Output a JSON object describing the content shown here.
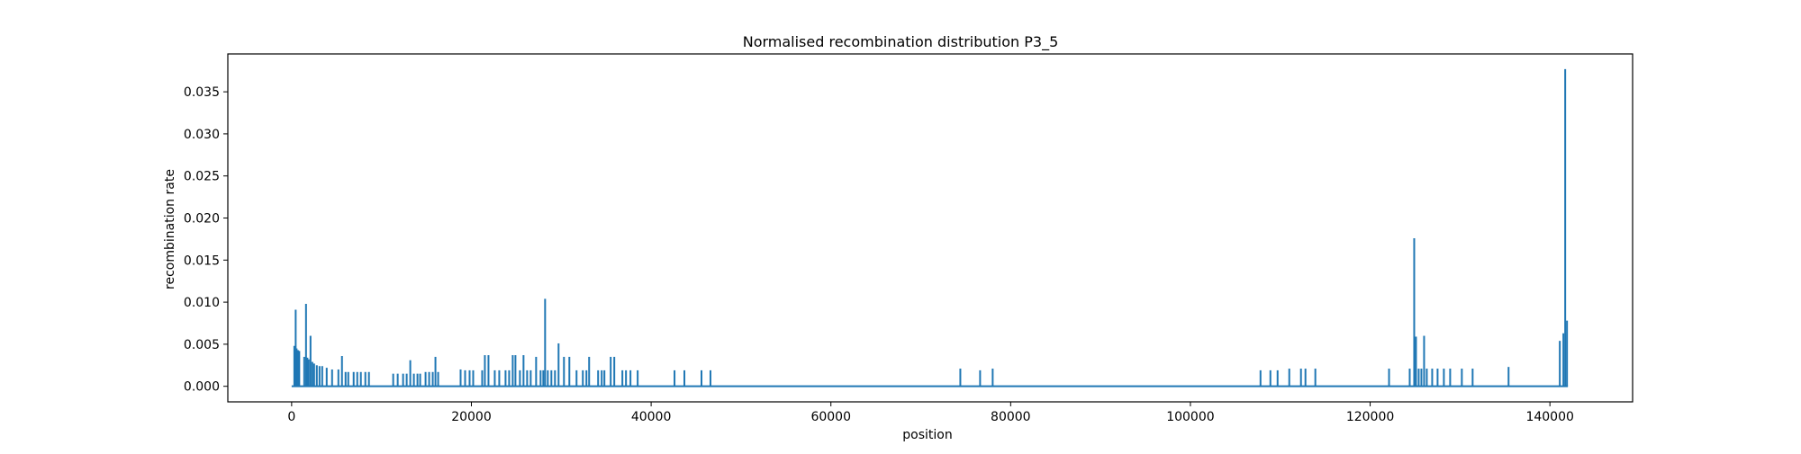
{
  "chart_data": {
    "type": "line",
    "title": "Normalised recombination distribution P3_5",
    "xlabel": "position",
    "ylabel": "recombination rate",
    "xlim": [
      -7100,
      149200
    ],
    "ylim": [
      -0.00185,
      0.0395
    ],
    "x_ticks": [
      0,
      20000,
      40000,
      60000,
      80000,
      100000,
      120000,
      140000
    ],
    "x_tick_labels": [
      "0",
      "20000",
      "40000",
      "60000",
      "80000",
      "100000",
      "120000",
      "140000"
    ],
    "y_ticks": [
      0.0,
      0.005,
      0.01,
      0.015,
      0.02,
      0.025,
      0.03,
      0.035
    ],
    "y_tick_labels": [
      "0.000",
      "0.005",
      "0.010",
      "0.015",
      "0.020",
      "0.025",
      "0.030",
      "0.035"
    ],
    "grid": false,
    "color": "#1f77b4",
    "x_range": [
      0,
      142000
    ],
    "baseline": 0,
    "spikes": [
      [
        300,
        0.0048
      ],
      [
        450,
        0.0091
      ],
      [
        550,
        0.0045
      ],
      [
        700,
        0.0043
      ],
      [
        850,
        0.0042
      ],
      [
        1400,
        0.0035
      ],
      [
        1600,
        0.0098
      ],
      [
        1750,
        0.0034
      ],
      [
        1900,
        0.0032
      ],
      [
        2100,
        0.006
      ],
      [
        2300,
        0.0029
      ],
      [
        2500,
        0.0027
      ],
      [
        2800,
        0.0025
      ],
      [
        3100,
        0.0024
      ],
      [
        3400,
        0.0024
      ],
      [
        3900,
        0.0022
      ],
      [
        4500,
        0.002
      ],
      [
        5200,
        0.002
      ],
      [
        5600,
        0.0036
      ],
      [
        6000,
        0.0017
      ],
      [
        6300,
        0.0017
      ],
      [
        6900,
        0.0017
      ],
      [
        7300,
        0.0017
      ],
      [
        7700,
        0.0017
      ],
      [
        8200,
        0.0017
      ],
      [
        8600,
        0.0017
      ],
      [
        11300,
        0.0015
      ],
      [
        11800,
        0.0015
      ],
      [
        12400,
        0.0015
      ],
      [
        12800,
        0.0015
      ],
      [
        13200,
        0.0031
      ],
      [
        13600,
        0.0015
      ],
      [
        14000,
        0.0015
      ],
      [
        14300,
        0.0015
      ],
      [
        14900,
        0.0017
      ],
      [
        15300,
        0.0017
      ],
      [
        15700,
        0.0017
      ],
      [
        16000,
        0.0035
      ],
      [
        16300,
        0.0017
      ],
      [
        18800,
        0.002
      ],
      [
        19300,
        0.0019
      ],
      [
        19800,
        0.0019
      ],
      [
        20200,
        0.0019
      ],
      [
        21200,
        0.0019
      ],
      [
        21500,
        0.0037
      ],
      [
        21900,
        0.0037
      ],
      [
        22600,
        0.0019
      ],
      [
        23100,
        0.0019
      ],
      [
        23800,
        0.0019
      ],
      [
        24200,
        0.0019
      ],
      [
        24600,
        0.0037
      ],
      [
        24900,
        0.0037
      ],
      [
        25400,
        0.0019
      ],
      [
        25800,
        0.0037
      ],
      [
        26200,
        0.0019
      ],
      [
        26600,
        0.0019
      ],
      [
        27200,
        0.0035
      ],
      [
        27700,
        0.0019
      ],
      [
        28000,
        0.0019
      ],
      [
        28200,
        0.0104
      ],
      [
        28500,
        0.0019
      ],
      [
        28900,
        0.0019
      ],
      [
        29300,
        0.0019
      ],
      [
        29700,
        0.0051
      ],
      [
        30300,
        0.0035
      ],
      [
        30900,
        0.0035
      ],
      [
        31700,
        0.0019
      ],
      [
        32400,
        0.0019
      ],
      [
        32800,
        0.0019
      ],
      [
        33100,
        0.0035
      ],
      [
        34100,
        0.0019
      ],
      [
        34500,
        0.0019
      ],
      [
        34800,
        0.0019
      ],
      [
        35500,
        0.0035
      ],
      [
        35900,
        0.0035
      ],
      [
        36800,
        0.0019
      ],
      [
        37200,
        0.0019
      ],
      [
        37700,
        0.0019
      ],
      [
        38500,
        0.0019
      ],
      [
        42600,
        0.0019
      ],
      [
        43700,
        0.0019
      ],
      [
        45600,
        0.0019
      ],
      [
        46600,
        0.0019
      ],
      [
        74400,
        0.0021
      ],
      [
        76600,
        0.0019
      ],
      [
        78000,
        0.0021
      ],
      [
        107800,
        0.0019
      ],
      [
        108900,
        0.0019
      ],
      [
        109700,
        0.0019
      ],
      [
        111000,
        0.0021
      ],
      [
        112300,
        0.0021
      ],
      [
        112800,
        0.0021
      ],
      [
        113900,
        0.0021
      ],
      [
        122100,
        0.0021
      ],
      [
        124400,
        0.0021
      ],
      [
        124900,
        0.0176
      ],
      [
        125100,
        0.0059
      ],
      [
        125400,
        0.0021
      ],
      [
        125700,
        0.0021
      ],
      [
        126000,
        0.006
      ],
      [
        126300,
        0.0021
      ],
      [
        126900,
        0.0021
      ],
      [
        127500,
        0.0021
      ],
      [
        128200,
        0.0021
      ],
      [
        128900,
        0.0021
      ],
      [
        130200,
        0.0021
      ],
      [
        131400,
        0.0021
      ],
      [
        135400,
        0.0023
      ],
      [
        141100,
        0.0054
      ],
      [
        141500,
        0.0063
      ],
      [
        141700,
        0.0377
      ],
      [
        141900,
        0.0078
      ]
    ]
  }
}
